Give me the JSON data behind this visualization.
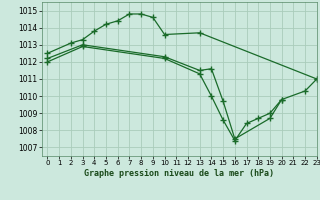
{
  "title": "Graphe pression niveau de la mer (hPa)",
  "background_color": "#cce8dd",
  "grid_color": "#aaccbb",
  "line_color": "#1a6b2a",
  "xlim": [
    -0.5,
    23
  ],
  "ylim": [
    1006.5,
    1015.5
  ],
  "yticks": [
    1007,
    1008,
    1009,
    1010,
    1011,
    1012,
    1013,
    1014,
    1015
  ],
  "xticks": [
    0,
    1,
    2,
    3,
    4,
    5,
    6,
    7,
    8,
    9,
    10,
    11,
    12,
    13,
    14,
    15,
    16,
    17,
    18,
    19,
    20,
    21,
    22,
    23
  ],
  "series1_x": [
    0,
    2,
    3,
    4,
    5,
    6,
    7,
    8,
    9,
    10,
    13,
    23
  ],
  "series1_y": [
    1012.5,
    1013.1,
    1013.3,
    1013.8,
    1014.2,
    1014.4,
    1014.8,
    1014.8,
    1014.6,
    1013.6,
    1013.7,
    1011.0
  ],
  "series2_x": [
    0,
    3,
    10,
    13,
    14,
    15,
    16,
    19,
    20,
    22,
    23
  ],
  "series2_y": [
    1012.2,
    1013.0,
    1012.3,
    1011.5,
    1011.6,
    1009.7,
    1007.5,
    1008.7,
    1009.8,
    1010.3,
    1011.0
  ],
  "series3_x": [
    0,
    3,
    10,
    13,
    14,
    15,
    16,
    17,
    18,
    19,
    20
  ],
  "series3_y": [
    1012.0,
    1012.9,
    1012.2,
    1011.3,
    1010.0,
    1008.6,
    1007.4,
    1008.4,
    1008.7,
    1009.0,
    1009.8
  ]
}
